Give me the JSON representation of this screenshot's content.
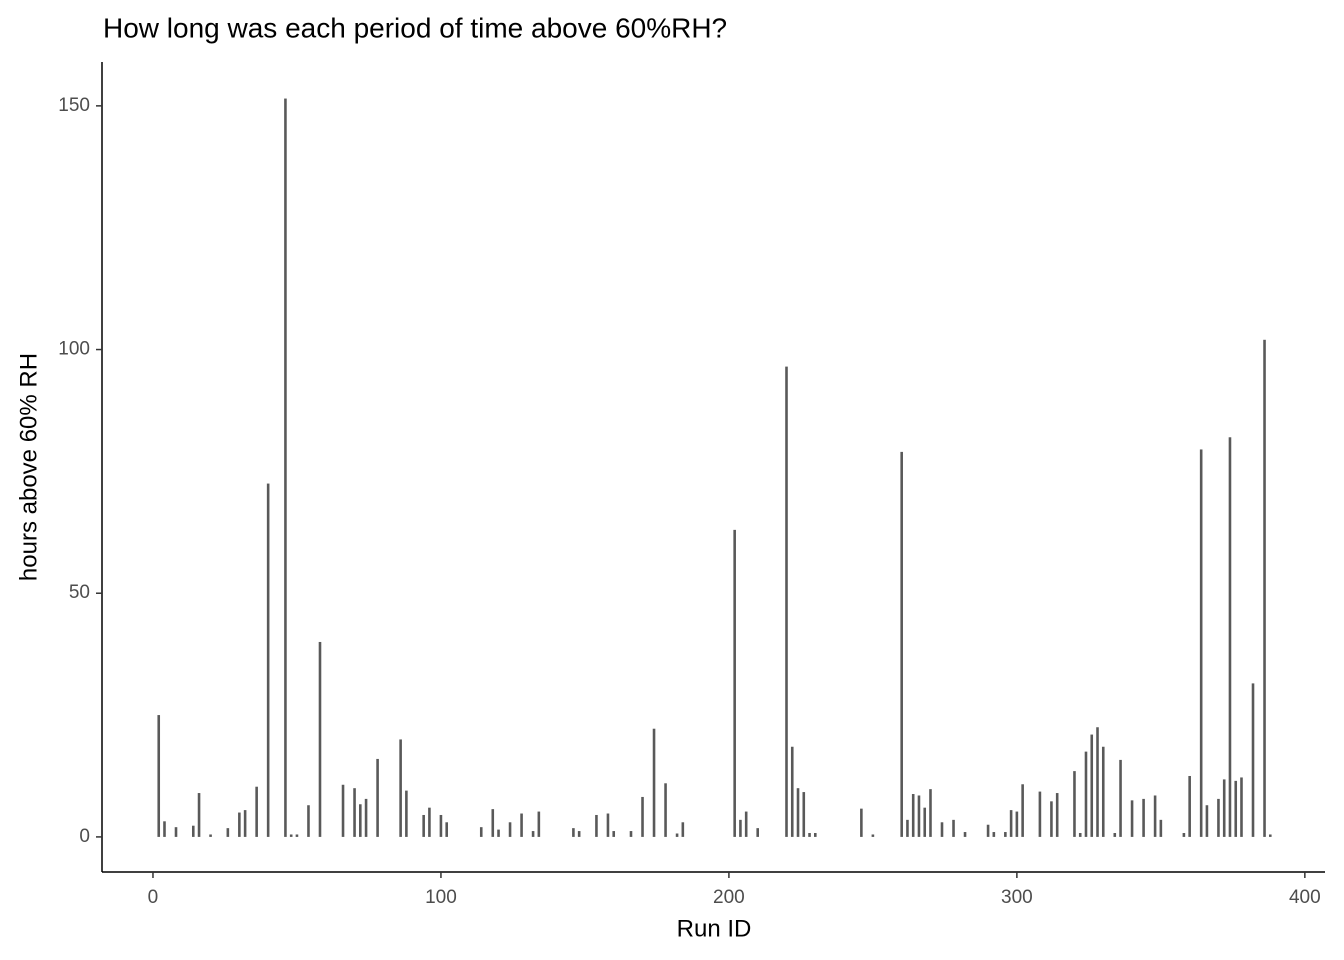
{
  "chart_data": {
    "type": "bar",
    "title": "How long was each period of time above 60%RH?",
    "x_label": "Run ID",
    "y_label": "hours above 60% RH",
    "x": [
      2,
      4,
      8,
      14,
      16,
      20,
      26,
      30,
      32,
      36,
      40,
      46,
      48,
      50,
      54,
      58,
      66,
      70,
      72,
      74,
      78,
      86,
      88,
      94,
      96,
      100,
      102,
      114,
      118,
      120,
      124,
      128,
      132,
      134,
      146,
      148,
      154,
      158,
      160,
      166,
      170,
      174,
      178,
      182,
      184,
      202,
      204,
      206,
      210,
      220,
      222,
      224,
      226,
      228,
      230,
      246,
      250,
      260,
      262,
      264,
      266,
      268,
      270,
      274,
      278,
      282,
      290,
      292,
      296,
      298,
      300,
      302,
      308,
      312,
      314,
      320,
      322,
      324,
      326,
      328,
      330,
      334,
      336,
      340,
      344,
      348,
      350,
      358,
      360,
      364,
      366,
      370,
      372,
      374,
      376,
      378,
      382,
      386,
      388
    ],
    "values": [
      25,
      3.2,
      2,
      2.3,
      9,
      0.5,
      1.8,
      5,
      5.5,
      10.3,
      72.5,
      151.5,
      0.5,
      0.5,
      6.5,
      40,
      10.7,
      10,
      6.7,
      7.8,
      16,
      20,
      9.5,
      4.5,
      6,
      4.5,
      3,
      2,
      5.7,
      1.5,
      3,
      4.8,
      1.2,
      5.2,
      1.8,
      1.2,
      4.5,
      4.8,
      1.2,
      1.2,
      8.2,
      22.2,
      11,
      0.7,
      3,
      63,
      3.5,
      5.2,
      1.8,
      96.5,
      18.5,
      10,
      9.2,
      0.8,
      0.8,
      5.8,
      0.5,
      79,
      3.5,
      8.8,
      8.5,
      6,
      9.8,
      3,
      3.5,
      1,
      2.5,
      1,
      1,
      5.5,
      5.2,
      10.8,
      9.3,
      7.3,
      9,
      13.5,
      0.8,
      17.5,
      21,
      22.5,
      18.5,
      0.8,
      15.8,
      7.5,
      7.8,
      8.5,
      3.5,
      0.8,
      12.5,
      79.5,
      6.5,
      7.8,
      11.8,
      82,
      11.5,
      12.2,
      31.5,
      102,
      0.5
    ],
    "color": "#595959",
    "xlim": [
      -17.7,
      407
    ],
    "xticks": [
      0,
      100,
      200,
      300,
      400
    ],
    "ylim": [
      -7.2,
      159
    ],
    "yticks": [
      0,
      50,
      100,
      150
    ],
    "grid": false
  }
}
